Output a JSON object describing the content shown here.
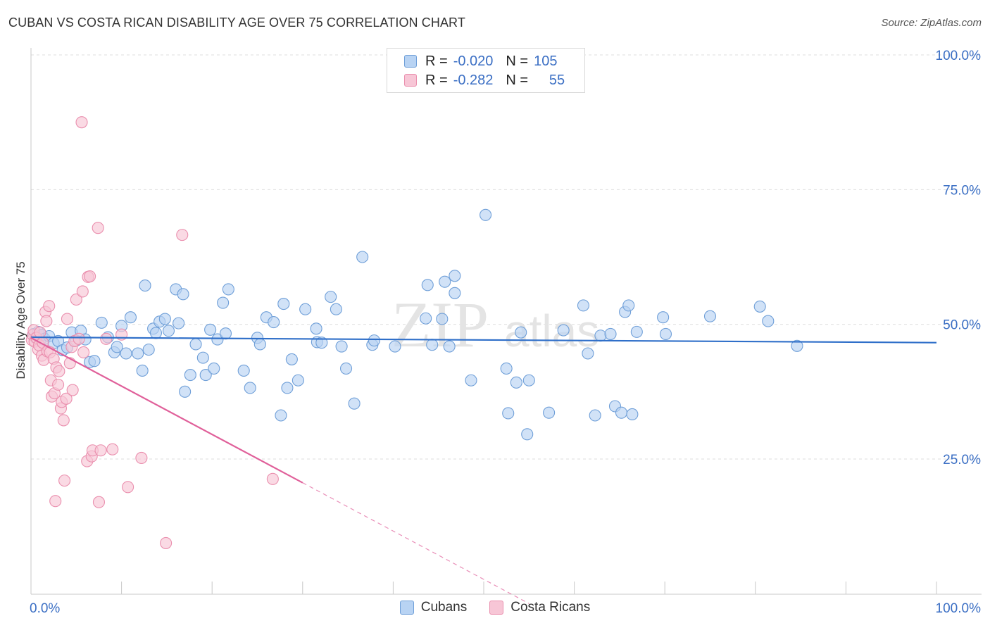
{
  "header": {
    "title": "CUBAN VS COSTA RICAN DISABILITY AGE OVER 75 CORRELATION CHART",
    "source": "Source: ZipAtlas.com"
  },
  "legend": {
    "series": [
      {
        "r_label": "R =",
        "r_value": "-0.020",
        "n_label": "N =",
        "n_value": "105"
      },
      {
        "r_label": "R =",
        "r_value": "-0.282",
        "n_label": "N =",
        "n_value": "55"
      }
    ]
  },
  "watermark": {
    "zip": "ZIP",
    "atlas": "atlas"
  },
  "colors": {
    "cuban_fill": "#b8d3f3",
    "cuban_stroke": "#6f9fd8",
    "cuban_line": "#2f6fc9",
    "cr_fill": "#f7c6d6",
    "cr_stroke": "#ea8fae",
    "cr_line": "#e0609a",
    "axis_text": "#3b6fc4",
    "grid": "#dddddd"
  },
  "chart_data": {
    "type": "scatter",
    "title": "CUBAN VS COSTA RICAN DISABILITY AGE OVER 75 CORRELATION CHART",
    "xlabel": "",
    "ylabel": "Disability Age Over 75",
    "xlim": [
      0,
      100
    ],
    "ylim": [
      0,
      105
    ],
    "x_tick_labels": [
      {
        "value": 0,
        "label": "0.0%"
      },
      {
        "value": 100,
        "label": "100.0%"
      }
    ],
    "y_tick_labels": [
      {
        "value": 25,
        "label": "25.0%"
      },
      {
        "value": 50,
        "label": "50.0%"
      },
      {
        "value": 75,
        "label": "75.0%"
      },
      {
        "value": 100,
        "label": "100.0%"
      }
    ],
    "grid": true,
    "legend_position": "bottom-center",
    "series": [
      {
        "name": "Cubans",
        "r": -0.02,
        "n": 105,
        "trend": {
          "x0": 0,
          "y0": 47.6,
          "x1": 100,
          "y1": 46.6,
          "solid_to": 100
        },
        "points": [
          [
            0.3,
            48.2
          ],
          [
            0.5,
            47.5
          ],
          [
            0.8,
            48.6
          ],
          [
            1.0,
            47.0
          ],
          [
            1.2,
            48.0
          ],
          [
            1.5,
            47.3
          ],
          [
            2.0,
            47.8
          ],
          [
            2.5,
            46.5
          ],
          [
            3.0,
            46.9
          ],
          [
            3.5,
            45.2
          ],
          [
            4.0,
            45.7
          ],
          [
            4.5,
            48.5
          ],
          [
            5.0,
            47.0
          ],
          [
            5.5,
            48.8
          ],
          [
            6.0,
            47.2
          ],
          [
            6.5,
            43.0
          ],
          [
            7.0,
            43.2
          ],
          [
            7.8,
            50.3
          ],
          [
            8.5,
            47.6
          ],
          [
            9.2,
            44.8
          ],
          [
            9.5,
            45.8
          ],
          [
            10.0,
            49.7
          ],
          [
            10.5,
            44.6
          ],
          [
            11.0,
            51.3
          ],
          [
            11.8,
            44.6
          ],
          [
            12.3,
            41.4
          ],
          [
            12.6,
            57.2
          ],
          [
            13.0,
            45.3
          ],
          [
            13.5,
            49.2
          ],
          [
            13.8,
            48.4
          ],
          [
            14.2,
            50.5
          ],
          [
            14.8,
            51.0
          ],
          [
            15.2,
            48.8
          ],
          [
            16.0,
            56.5
          ],
          [
            16.3,
            50.2
          ],
          [
            16.8,
            55.6
          ],
          [
            17.0,
            37.5
          ],
          [
            17.6,
            40.6
          ],
          [
            18.2,
            46.3
          ],
          [
            19.0,
            43.8
          ],
          [
            19.3,
            40.6
          ],
          [
            19.8,
            49.0
          ],
          [
            20.2,
            41.8
          ],
          [
            20.6,
            47.2
          ],
          [
            21.2,
            54.0
          ],
          [
            21.8,
            56.5
          ],
          [
            21.5,
            48.3
          ],
          [
            23.5,
            41.4
          ],
          [
            24.2,
            38.2
          ],
          [
            25.0,
            47.5
          ],
          [
            25.3,
            46.3
          ],
          [
            26.0,
            51.3
          ],
          [
            26.8,
            50.4
          ],
          [
            27.6,
            33.1
          ],
          [
            27.9,
            53.8
          ],
          [
            28.3,
            38.2
          ],
          [
            28.8,
            43.5
          ],
          [
            29.5,
            39.6
          ],
          [
            30.3,
            52.8
          ],
          [
            31.6,
            46.7
          ],
          [
            31.5,
            49.2
          ],
          [
            32.1,
            46.6
          ],
          [
            33.1,
            55.1
          ],
          [
            33.7,
            52.8
          ],
          [
            34.3,
            45.9
          ],
          [
            34.8,
            41.8
          ],
          [
            35.7,
            35.3
          ],
          [
            36.6,
            62.5
          ],
          [
            37.7,
            46.2
          ],
          [
            37.9,
            47.0
          ],
          [
            40.2,
            45.9
          ],
          [
            43.6,
            51.1
          ],
          [
            43.8,
            57.3
          ],
          [
            44.3,
            46.2
          ],
          [
            45.4,
            51.0
          ],
          [
            45.7,
            57.9
          ],
          [
            46.2,
            45.9
          ],
          [
            46.8,
            55.8
          ],
          [
            46.8,
            59.0
          ],
          [
            48.6,
            39.6
          ],
          [
            50.2,
            70.3
          ],
          [
            52.5,
            41.8
          ],
          [
            52.7,
            33.5
          ],
          [
            53.6,
            39.2
          ],
          [
            54.1,
            48.5
          ],
          [
            54.8,
            29.6
          ],
          [
            55.0,
            39.6
          ],
          [
            57.2,
            33.6
          ],
          [
            58.8,
            48.9
          ],
          [
            61.0,
            53.5
          ],
          [
            61.5,
            44.6
          ],
          [
            62.3,
            33.1
          ],
          [
            62.9,
            47.9
          ],
          [
            64.0,
            48.2
          ],
          [
            64.5,
            34.8
          ],
          [
            65.2,
            33.6
          ],
          [
            65.6,
            52.3
          ],
          [
            66.0,
            53.5
          ],
          [
            66.4,
            33.3
          ],
          [
            66.9,
            48.6
          ],
          [
            69.8,
            51.3
          ],
          [
            70.1,
            48.2
          ],
          [
            75.0,
            51.5
          ],
          [
            80.5,
            53.3
          ],
          [
            81.4,
            50.6
          ],
          [
            84.6,
            46.0
          ]
        ]
      },
      {
        "name": "Costa Ricans",
        "r": -0.282,
        "n": 55,
        "trend": {
          "x0": 0,
          "y0": 47.5,
          "x1": 30,
          "y1": 20.6,
          "solid_to": 30,
          "dashed_to": 55
        },
        "points": [
          [
            0.1,
            47.1
          ],
          [
            0.2,
            48.0
          ],
          [
            0.3,
            48.9
          ],
          [
            0.4,
            46.8
          ],
          [
            0.6,
            47.5
          ],
          [
            0.8,
            45.3
          ],
          [
            0.9,
            46.1
          ],
          [
            1.0,
            48.5
          ],
          [
            1.2,
            44.2
          ],
          [
            1.3,
            46.6
          ],
          [
            1.4,
            43.4
          ],
          [
            1.6,
            52.3
          ],
          [
            1.7,
            50.6
          ],
          [
            1.8,
            45.0
          ],
          [
            2.0,
            53.4
          ],
          [
            2.1,
            44.8
          ],
          [
            2.2,
            39.6
          ],
          [
            2.3,
            36.6
          ],
          [
            2.5,
            43.6
          ],
          [
            2.6,
            37.2
          ],
          [
            2.7,
            17.2
          ],
          [
            2.8,
            42.0
          ],
          [
            3.0,
            38.8
          ],
          [
            3.1,
            41.3
          ],
          [
            3.3,
            34.4
          ],
          [
            3.4,
            35.6
          ],
          [
            3.6,
            32.2
          ],
          [
            3.7,
            21.0
          ],
          [
            3.9,
            36.2
          ],
          [
            4.0,
            51.0
          ],
          [
            4.3,
            42.8
          ],
          [
            4.5,
            45.8
          ],
          [
            4.6,
            37.8
          ],
          [
            4.8,
            46.9
          ],
          [
            5.0,
            54.6
          ],
          [
            5.3,
            47.3
          ],
          [
            5.6,
            87.5
          ],
          [
            5.7,
            56.1
          ],
          [
            5.8,
            44.8
          ],
          [
            6.2,
            24.6
          ],
          [
            6.3,
            58.8
          ],
          [
            6.5,
            58.9
          ],
          [
            6.7,
            25.5
          ],
          [
            6.8,
            26.6
          ],
          [
            7.4,
            67.9
          ],
          [
            7.5,
            17.0
          ],
          [
            7.7,
            26.6
          ],
          [
            8.3,
            47.3
          ],
          [
            9.0,
            26.8
          ],
          [
            10.0,
            48.1
          ],
          [
            10.7,
            19.8
          ],
          [
            12.2,
            25.2
          ],
          [
            14.9,
            9.4
          ],
          [
            16.7,
            66.6
          ],
          [
            26.7,
            21.3
          ]
        ]
      }
    ]
  }
}
